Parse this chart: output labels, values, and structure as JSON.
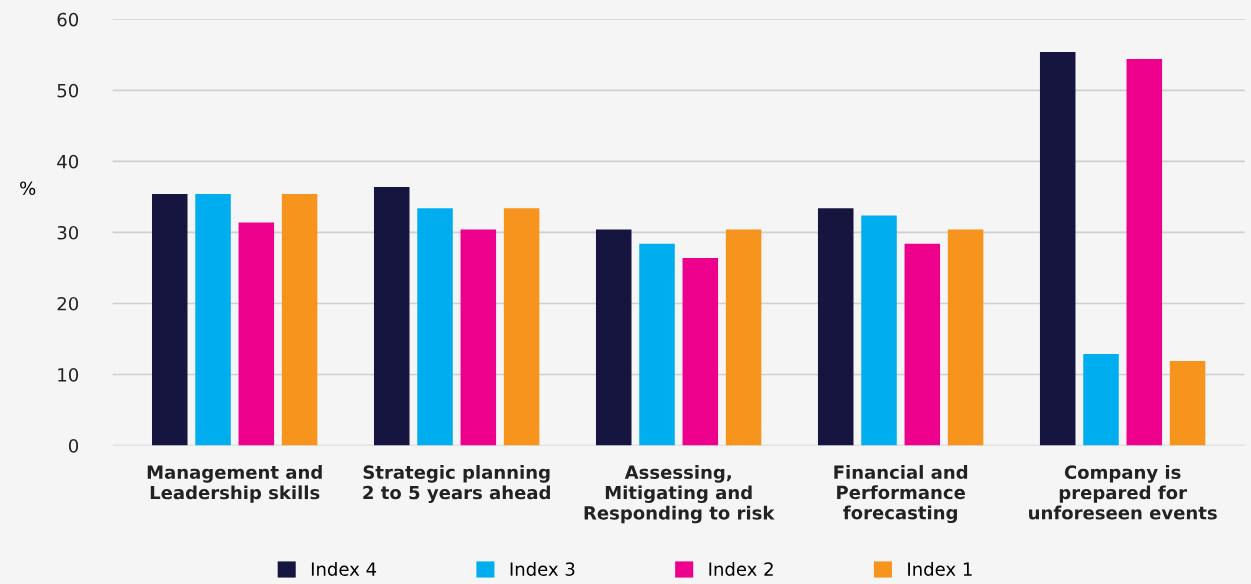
{
  "chart_data": {
    "type": "bar",
    "ylabel": "%",
    "categories": [
      "Management and\nLeadership skills",
      "Strategic planning\n2 to 5 years ahead",
      "Assessing,\nMitigating and\nResponding to risk",
      "Financial and\nPerformance\nforecasting",
      "Company is\nprepared for\nunforeseen events"
    ],
    "series": [
      {
        "name": "Index 4",
        "color": "#16153f",
        "values": [
          35.4,
          36.4,
          30.4,
          33.4,
          55.4
        ]
      },
      {
        "name": "Index 3",
        "color": "#00aeef",
        "values": [
          35.4,
          33.4,
          28.4,
          32.4,
          12.9
        ]
      },
      {
        "name": "Index 2",
        "color": "#ec008c",
        "values": [
          31.4,
          30.4,
          26.4,
          28.4,
          54.4
        ]
      },
      {
        "name": "Index 1",
        "color": "#f7941d",
        "values": [
          35.4,
          33.4,
          30.4,
          30.4,
          11.9
        ]
      }
    ],
    "ylim": [
      0,
      60
    ],
    "yticks": [
      0,
      10,
      20,
      30,
      40,
      50,
      60
    ],
    "grid": "y",
    "legend": "bottom"
  }
}
